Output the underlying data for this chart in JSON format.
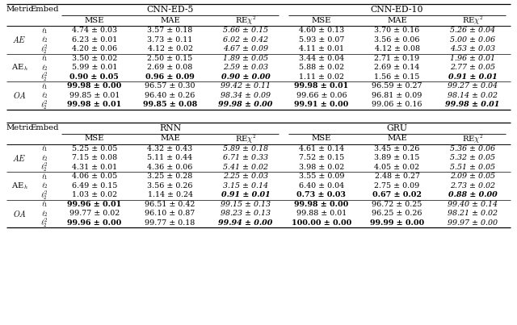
{
  "table1": {
    "title_cols": [
      "CNN-ED-5",
      "CNN-ED-10"
    ],
    "sub_cols": [
      "MSE",
      "MAE",
      "REχ²"
    ],
    "row_groups": [
      {
        "metric": "AE",
        "rows": [
          {
            "embed": "$\\ell_1$",
            "col1": [
              "4.74 ± 0.03",
              "3.57 ± 0.18",
              "5.66 ± 0.15"
            ],
            "col2": [
              "4.60 ± 0.13",
              "3.70 ± 0.16",
              "5.26 ± 0.04"
            ],
            "b1": [
              0,
              0,
              0
            ],
            "b2": [
              0,
              0,
              0
            ],
            "i1": [
              0,
              0,
              1
            ],
            "i2": [
              0,
              0,
              1
            ]
          },
          {
            "embed": "$\\ell_2$",
            "col1": [
              "6.23 ± 0.01",
              "3.73 ± 0.11",
              "6.02 ± 0.42"
            ],
            "col2": [
              "5.93 ± 0.07",
              "3.56 ± 0.06",
              "5.00 ± 0.06"
            ],
            "b1": [
              0,
              0,
              0
            ],
            "b2": [
              0,
              0,
              0
            ],
            "i1": [
              0,
              0,
              1
            ],
            "i2": [
              0,
              0,
              1
            ]
          },
          {
            "embed": "$\\ell_2^2$",
            "col1": [
              "4.20 ± 0.06",
              "4.12 ± 0.02",
              "4.67 ± 0.09"
            ],
            "col2": [
              "4.11 ± 0.01",
              "4.12 ± 0.08",
              "4.53 ± 0.03"
            ],
            "b1": [
              0,
              0,
              0
            ],
            "b2": [
              0,
              0,
              0
            ],
            "i1": [
              0,
              0,
              1
            ],
            "i2": [
              0,
              0,
              1
            ]
          }
        ]
      },
      {
        "metric": "AE$_h$",
        "rows": [
          {
            "embed": "$\\ell_1$",
            "col1": [
              "3.50 ± 0.02",
              "2.50 ± 0.15",
              "1.89 ± 0.05"
            ],
            "col2": [
              "3.44 ± 0.04",
              "2.71 ± 0.19",
              "1.96 ± 0.01"
            ],
            "b1": [
              0,
              0,
              0
            ],
            "b2": [
              0,
              0,
              0
            ],
            "i1": [
              0,
              0,
              1
            ],
            "i2": [
              0,
              0,
              1
            ]
          },
          {
            "embed": "$\\ell_2$",
            "col1": [
              "5.99 ± 0.01",
              "2.69 ± 0.08",
              "2.59 ± 0.03"
            ],
            "col2": [
              "5.88 ± 0.02",
              "2.69 ± 0.14",
              "2.77 ± 0.05"
            ],
            "b1": [
              0,
              0,
              0
            ],
            "b2": [
              0,
              0,
              0
            ],
            "i1": [
              0,
              0,
              1
            ],
            "i2": [
              0,
              0,
              1
            ]
          },
          {
            "embed": "$\\ell_2^2$",
            "col1": [
              "0.90 ± 0.05",
              "0.96 ± 0.09",
              "0.90 ± 0.00"
            ],
            "col2": [
              "1.11 ± 0.02",
              "1.56 ± 0.15",
              "0.91 ± 0.01"
            ],
            "b1": [
              1,
              1,
              1
            ],
            "b2": [
              0,
              0,
              1
            ],
            "i1": [
              0,
              0,
              1
            ],
            "i2": [
              0,
              0,
              1
            ]
          }
        ]
      },
      {
        "metric": "OA",
        "rows": [
          {
            "embed": "$\\ell_1$",
            "col1": [
              "99.98 ± 0.00",
              "96.57 ± 0.30",
              "99.42 ± 0.11"
            ],
            "col2": [
              "99.98 ± 0.01",
              "96.59 ± 0.27",
              "99.27 ± 0.04"
            ],
            "b1": [
              1,
              0,
              0
            ],
            "b2": [
              1,
              0,
              0
            ],
            "i1": [
              0,
              0,
              1
            ],
            "i2": [
              0,
              0,
              1
            ]
          },
          {
            "embed": "$\\ell_2$",
            "col1": [
              "99.85 ± 0.01",
              "96.40 ± 0.26",
              "98.34 ± 0.09"
            ],
            "col2": [
              "99.66 ± 0.06",
              "96.81 ± 0.09",
              "98.14 ± 0.02"
            ],
            "b1": [
              0,
              0,
              0
            ],
            "b2": [
              0,
              0,
              0
            ],
            "i1": [
              0,
              0,
              1
            ],
            "i2": [
              0,
              0,
              1
            ]
          },
          {
            "embed": "$\\ell_2^2$",
            "col1": [
              "99.98 ± 0.01",
              "99.85 ± 0.08",
              "99.98 ± 0.00"
            ],
            "col2": [
              "99.91 ± 0.00",
              "99.06 ± 0.16",
              "99.98 ± 0.01"
            ],
            "b1": [
              1,
              1,
              1
            ],
            "b2": [
              1,
              0,
              1
            ],
            "i1": [
              0,
              0,
              1
            ],
            "i2": [
              0,
              0,
              1
            ]
          }
        ]
      }
    ]
  },
  "table2": {
    "title_cols": [
      "RNN",
      "GRU"
    ],
    "sub_cols": [
      "MSE",
      "MAE",
      "REχ²"
    ],
    "row_groups": [
      {
        "metric": "AE",
        "rows": [
          {
            "embed": "$\\ell_1$",
            "col1": [
              "5.25 ± 0.05",
              "4.32 ± 0.43",
              "5.89 ± 0.18"
            ],
            "col2": [
              "4.61 ± 0.14",
              "3.45 ± 0.26",
              "5.36 ± 0.06"
            ],
            "b1": [
              0,
              0,
              0
            ],
            "b2": [
              0,
              0,
              0
            ],
            "i1": [
              0,
              0,
              1
            ],
            "i2": [
              0,
              0,
              1
            ]
          },
          {
            "embed": "$\\ell_2$",
            "col1": [
              "7.15 ± 0.08",
              "5.11 ± 0.44",
              "6.71 ± 0.33"
            ],
            "col2": [
              "7.52 ± 0.15",
              "3.89 ± 0.15",
              "5.32 ± 0.05"
            ],
            "b1": [
              0,
              0,
              0
            ],
            "b2": [
              0,
              0,
              0
            ],
            "i1": [
              0,
              0,
              1
            ],
            "i2": [
              0,
              0,
              1
            ]
          },
          {
            "embed": "$\\ell_2^2$",
            "col1": [
              "4.31 ± 0.01",
              "4.36 ± 0.06",
              "5.41 ± 0.02"
            ],
            "col2": [
              "3.98 ± 0.02",
              "4.05 ± 0.02",
              "5.51 ± 0.05"
            ],
            "b1": [
              0,
              0,
              0
            ],
            "b2": [
              0,
              0,
              0
            ],
            "i1": [
              0,
              0,
              1
            ],
            "i2": [
              0,
              0,
              1
            ]
          }
        ]
      },
      {
        "metric": "AE$_h$",
        "rows": [
          {
            "embed": "$\\ell_1$",
            "col1": [
              "4.06 ± 0.05",
              "3.25 ± 0.28",
              "2.25 ± 0.03"
            ],
            "col2": [
              "3.55 ± 0.09",
              "2.48 ± 0.27",
              "2.09 ± 0.05"
            ],
            "b1": [
              0,
              0,
              0
            ],
            "b2": [
              0,
              0,
              0
            ],
            "i1": [
              0,
              0,
              1
            ],
            "i2": [
              0,
              0,
              1
            ]
          },
          {
            "embed": "$\\ell_2$",
            "col1": [
              "6.49 ± 0.15",
              "3.56 ± 0.26",
              "3.15 ± 0.14"
            ],
            "col2": [
              "6.40 ± 0.04",
              "2.75 ± 0.09",
              "2.73 ± 0.02"
            ],
            "b1": [
              0,
              0,
              0
            ],
            "b2": [
              0,
              0,
              0
            ],
            "i1": [
              0,
              0,
              1
            ],
            "i2": [
              0,
              0,
              1
            ]
          },
          {
            "embed": "$\\ell_2^2$",
            "col1": [
              "1.03 ± 0.02",
              "1.14 ± 0.24",
              "0.91 ± 0.01"
            ],
            "col2": [
              "0.73 ± 0.03",
              "0.67 ± 0.02",
              "0.88 ± 0.00"
            ],
            "b1": [
              0,
              0,
              1
            ],
            "b2": [
              1,
              1,
              1
            ],
            "i1": [
              0,
              0,
              1
            ],
            "i2": [
              0,
              0,
              1
            ]
          }
        ]
      },
      {
        "metric": "OA",
        "rows": [
          {
            "embed": "$\\ell_1$",
            "col1": [
              "99.96 ± 0.01",
              "96.51 ± 0.42",
              "99.15 ± 0.13"
            ],
            "col2": [
              "99.98 ± 0.00",
              "96.72 ± 0.25",
              "99.40 ± 0.14"
            ],
            "b1": [
              1,
              0,
              0
            ],
            "b2": [
              1,
              0,
              0
            ],
            "i1": [
              0,
              0,
              1
            ],
            "i2": [
              0,
              0,
              1
            ]
          },
          {
            "embed": "$\\ell_2$",
            "col1": [
              "99.77 ± 0.02",
              "96.10 ± 0.87",
              "98.23 ± 0.13"
            ],
            "col2": [
              "99.88 ± 0.01",
              "96.25 ± 0.26",
              "98.21 ± 0.02"
            ],
            "b1": [
              0,
              0,
              0
            ],
            "b2": [
              0,
              0,
              0
            ],
            "i1": [
              0,
              0,
              1
            ],
            "i2": [
              0,
              0,
              1
            ]
          },
          {
            "embed": "$\\ell_2^2$",
            "col1": [
              "99.96 ± 0.00",
              "99.77 ± 0.18",
              "99.94 ± 0.00"
            ],
            "col2": [
              "100.00 ± 0.00",
              "99.99 ± 0.00",
              "99.97 ± 0.00"
            ],
            "b1": [
              1,
              0,
              1
            ],
            "b2": [
              1,
              1,
              0
            ],
            "i1": [
              0,
              0,
              1
            ],
            "i2": [
              0,
              0,
              1
            ]
          }
        ]
      }
    ]
  }
}
